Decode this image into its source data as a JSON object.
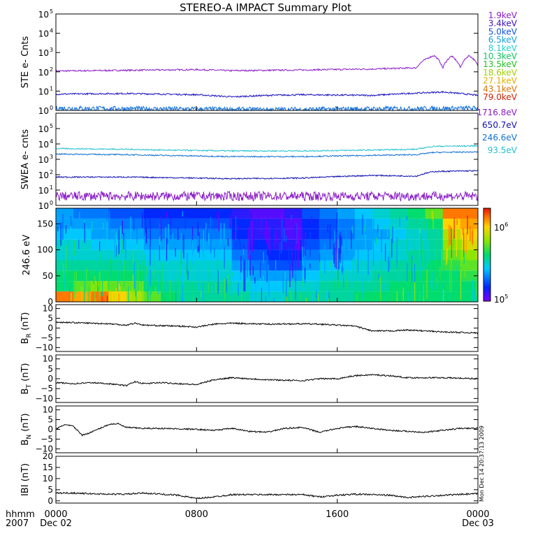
{
  "title": "STEREO-A IMPACT Summary Plot",
  "stamp": "Mon Dec 14 20:37:13 2009",
  "time_axis": {
    "corner_top": "hhmm",
    "corner_bottom": "2007",
    "ticks": [
      {
        "hours": 0,
        "label": "0000",
        "sub": "Dec 02"
      },
      {
        "hours": 8,
        "label": "0800",
        "sub": ""
      },
      {
        "hours": 16,
        "label": "1600",
        "sub": ""
      },
      {
        "hours": 24,
        "label": "0000",
        "sub": "Dec 03"
      }
    ]
  },
  "ste_legend": [
    {
      "label": "1.9keV",
      "color": "#8a1cc8"
    },
    {
      "label": "3.4keV",
      "color": "#3a10c0"
    },
    {
      "label": "5.0keV",
      "color": "#1050e0"
    },
    {
      "label": "6.5keV",
      "color": "#10a0e0"
    },
    {
      "label": "8.1keV",
      "color": "#20d0d0"
    },
    {
      "label": "10.3keV",
      "color": "#10c060"
    },
    {
      "label": "13.5keV",
      "color": "#20c020"
    },
    {
      "label": "18.6keV",
      "color": "#a0d000"
    },
    {
      "label": "27.1keV",
      "color": "#e0b000"
    },
    {
      "label": "43.1keV",
      "color": "#e07000"
    },
    {
      "label": "79.0keV",
      "color": "#d02000"
    }
  ],
  "swea_legend": [
    {
      "label": "1716.8eV",
      "color": "#8a1cc8"
    },
    {
      "label": "650.7eV",
      "color": "#1010b0"
    },
    {
      "label": "246.6eV",
      "color": "#1070d0"
    },
    {
      "label": "93.5eV",
      "color": "#20c0d0"
    }
  ],
  "colorbar": {
    "label_top": "10",
    "exp_top": "6",
    "label_bottom": "10",
    "exp_bottom": "5"
  },
  "chart_data": [
    {
      "type": "line",
      "name": "ste",
      "ylabel": "STE e- Cnts",
      "log": true,
      "ylim": [
        1,
        100000
      ],
      "yticks": [
        {
          "base": "10",
          "exp": "0"
        },
        {
          "base": "10",
          "exp": "1"
        },
        {
          "base": "10",
          "exp": "2"
        },
        {
          "base": "10",
          "exp": "3"
        },
        {
          "base": "10",
          "exp": "4"
        },
        {
          "base": "10",
          "exp": "5"
        }
      ],
      "series": [
        {
          "color": "#8a1cc8",
          "x": [
            0,
            4,
            8,
            10,
            12,
            14,
            18,
            20.5,
            21.5,
            22,
            22.5,
            23,
            23.5,
            24
          ],
          "y": [
            110,
            120,
            130,
            115,
            120,
            125,
            140,
            160,
            700,
            150,
            650,
            160,
            700,
            200
          ]
        },
        {
          "color": "#1a10c0",
          "x": [
            0,
            4,
            8,
            10,
            12,
            14,
            18,
            22,
            24
          ],
          "y": [
            7,
            7.5,
            6.5,
            5,
            6,
            6.5,
            6,
            9,
            6
          ]
        },
        {
          "color": "#1070e0",
          "x": [
            0,
            6,
            12,
            18,
            24
          ],
          "y": [
            1.3,
            1.2,
            1.1,
            1.2,
            1.3
          ]
        }
      ]
    },
    {
      "type": "line",
      "name": "swea",
      "ylabel": "SWEA e- cnts",
      "log": true,
      "ylim": [
        1,
        1000000
      ],
      "yticks": [
        {
          "base": "10",
          "exp": "0"
        },
        {
          "base": "10",
          "exp": "1"
        },
        {
          "base": "10",
          "exp": "2"
        },
        {
          "base": "10",
          "exp": "3"
        },
        {
          "base": "10",
          "exp": "4"
        },
        {
          "base": "10",
          "exp": "5"
        }
      ],
      "series": [
        {
          "color": "#20c0d0",
          "x": [
            0,
            4,
            6,
            10,
            14,
            18,
            20.5,
            21.5,
            24
          ],
          "y": [
            5000,
            4500,
            4000,
            3500,
            3500,
            4000,
            4500,
            7000,
            7500
          ]
        },
        {
          "color": "#1070d0",
          "x": [
            0,
            4,
            6,
            10,
            14,
            18,
            20.5,
            21.5,
            24
          ],
          "y": [
            2200,
            2000,
            1800,
            1500,
            1500,
            1800,
            2000,
            2800,
            3000
          ]
        },
        {
          "color": "#1010b0",
          "x": [
            0,
            4,
            8,
            10,
            14,
            18,
            20.5,
            21.5,
            24
          ],
          "y": [
            70,
            70,
            60,
            55,
            60,
            90,
            80,
            160,
            180
          ]
        },
        {
          "color": "#8a1cc8",
          "x": [
            0,
            12,
            24
          ],
          "y": [
            4,
            4,
            4
          ]
        }
      ]
    },
    {
      "type": "heatmap",
      "name": "pad",
      "ylabel": "246.6 eV",
      "ylim": [
        0,
        180
      ],
      "yticks": [
        "0",
        "50",
        "100",
        "150"
      ],
      "x": [
        0,
        1,
        2,
        3,
        4,
        5,
        6,
        7,
        8,
        9,
        10,
        11,
        12,
        13,
        14,
        15,
        16,
        17,
        18,
        19,
        20,
        21,
        22,
        23
      ],
      "y": [
        10,
        30,
        50,
        70,
        90,
        110,
        130,
        150,
        170
      ],
      "z_log": [
        [
          5.9,
          5.5,
          5.5,
          5.45,
          5.4,
          5.4,
          5.35,
          5.3,
          5.3
        ],
        [
          5.85,
          5.6,
          5.5,
          5.45,
          5.4,
          5.4,
          5.35,
          5.3,
          5.25
        ],
        [
          5.9,
          5.65,
          5.5,
          5.45,
          5.4,
          5.35,
          5.3,
          5.3,
          5.25
        ],
        [
          5.8,
          5.6,
          5.5,
          5.45,
          5.4,
          5.35,
          5.3,
          5.25,
          5.2
        ],
        [
          5.7,
          5.6,
          5.5,
          5.45,
          5.4,
          5.35,
          5.3,
          5.25,
          5.2
        ],
        [
          5.6,
          5.5,
          5.45,
          5.4,
          5.35,
          5.3,
          5.25,
          5.2,
          5.15
        ],
        [
          5.5,
          5.45,
          5.4,
          5.4,
          5.35,
          5.3,
          5.25,
          5.2,
          5.15
        ],
        [
          5.45,
          5.45,
          5.4,
          5.4,
          5.35,
          5.3,
          5.25,
          5.2,
          5.15
        ],
        [
          5.45,
          5.45,
          5.4,
          5.4,
          5.35,
          5.3,
          5.25,
          5.2,
          5.15
        ],
        [
          5.45,
          5.45,
          5.4,
          5.4,
          5.35,
          5.3,
          5.25,
          5.2,
          5.15
        ],
        [
          5.45,
          5.4,
          5.35,
          5.3,
          5.25,
          5.2,
          5.15,
          5.15,
          5.1
        ],
        [
          5.4,
          5.35,
          5.3,
          5.25,
          5.2,
          5.15,
          5.1,
          5.1,
          5.05
        ],
        [
          5.4,
          5.35,
          5.3,
          5.2,
          5.15,
          5.1,
          5.1,
          5.1,
          5.05
        ],
        [
          5.45,
          5.4,
          5.3,
          5.2,
          5.15,
          5.1,
          5.05,
          5.05,
          5.1
        ],
        [
          5.45,
          5.4,
          5.35,
          5.3,
          5.25,
          5.2,
          5.15,
          5.15,
          5.2
        ],
        [
          5.45,
          5.45,
          5.4,
          5.35,
          5.3,
          5.25,
          5.2,
          5.2,
          5.25
        ],
        [
          5.45,
          5.45,
          5.4,
          5.35,
          5.3,
          5.3,
          5.25,
          5.25,
          5.3
        ],
        [
          5.5,
          5.45,
          5.4,
          5.4,
          5.35,
          5.3,
          5.3,
          5.3,
          5.35
        ],
        [
          5.5,
          5.45,
          5.45,
          5.4,
          5.35,
          5.35,
          5.3,
          5.35,
          5.4
        ],
        [
          5.5,
          5.5,
          5.45,
          5.45,
          5.4,
          5.4,
          5.35,
          5.4,
          5.45
        ],
        [
          5.5,
          5.5,
          5.5,
          5.45,
          5.45,
          5.4,
          5.4,
          5.45,
          5.5
        ],
        [
          5.5,
          5.5,
          5.5,
          5.5,
          5.45,
          5.45,
          5.45,
          5.5,
          5.6
        ],
        [
          5.5,
          5.5,
          5.5,
          5.55,
          5.6,
          5.65,
          5.7,
          5.8,
          5.9
        ],
        [
          5.5,
          5.5,
          5.55,
          5.6,
          5.65,
          5.75,
          5.8,
          5.85,
          5.9
        ]
      ]
    },
    {
      "type": "line",
      "name": "br",
      "ylabel": "B",
      "ysub": "R",
      "yunit": " (nT)",
      "ylim": [
        -12,
        12
      ],
      "yticks": [
        "−10",
        "−5",
        "0",
        "5",
        "10"
      ],
      "series": [
        {
          "color": "#000000",
          "x": [
            0,
            1,
            2,
            3,
            4,
            4.5,
            5,
            6,
            7,
            8,
            9,
            10,
            12,
            14,
            15,
            16,
            17,
            18,
            19,
            20,
            22,
            24
          ],
          "y": [
            3,
            2.8,
            2.5,
            2.2,
            1.5,
            2.5,
            1.5,
            1.2,
            1.0,
            0.5,
            2.0,
            2.5,
            2.0,
            2.2,
            2.0,
            1.5,
            1.0,
            -1.5,
            -1.5,
            -1.0,
            -2.0,
            -2.5
          ]
        }
      ]
    },
    {
      "type": "line",
      "name": "bt",
      "ylabel": "B",
      "ysub": "T",
      "yunit": " (nT)",
      "ylim": [
        -12,
        12
      ],
      "yticks": [
        "−10",
        "−5",
        "0",
        "5",
        "10"
      ],
      "series": [
        {
          "color": "#000000",
          "x": [
            0,
            1,
            2,
            3,
            4,
            4.5,
            5,
            6,
            7,
            8,
            9,
            10,
            12,
            14,
            15,
            16,
            17,
            18,
            19,
            20,
            22,
            24
          ],
          "y": [
            -2,
            -2.5,
            -2,
            -2.5,
            -3.5,
            -1.5,
            -2.5,
            -2,
            -2.5,
            -3.0,
            -0.5,
            0.5,
            -0.5,
            -1.0,
            0,
            0,
            1.5,
            2.0,
            1.5,
            0.5,
            0.5,
            0
          ]
        }
      ]
    },
    {
      "type": "line",
      "name": "bn",
      "ylabel": "B",
      "ysub": "N",
      "yunit": " (nT)",
      "ylim": [
        -12,
        12
      ],
      "yticks": [
        "−10",
        "−5",
        "0",
        "5",
        "10"
      ],
      "series": [
        {
          "color": "#000000",
          "x": [
            0,
            0.5,
            1,
            1.5,
            2,
            3,
            3.5,
            4,
            5,
            6,
            8,
            9,
            10,
            11,
            12,
            13,
            14,
            15,
            16,
            17,
            18,
            19,
            20,
            21,
            22,
            23,
            24
          ],
          "y": [
            0,
            2.5,
            1.5,
            -3.0,
            -1.5,
            2.5,
            3.0,
            1.0,
            0.5,
            0.5,
            0,
            -0.5,
            0.5,
            -1.0,
            -1.5,
            0.5,
            1.0,
            -1.5,
            0.5,
            1.5,
            0.5,
            -0.5,
            -1.0,
            -1.5,
            -0.5,
            0.5,
            0.5
          ]
        }
      ]
    },
    {
      "type": "line",
      "name": "bmag",
      "ylabel": "IBI",
      "ysub": "",
      "yunit": " (nT)",
      "ylim": [
        -1,
        20
      ],
      "yticks": [
        "0",
        "5",
        "10",
        "15",
        "20"
      ],
      "series": [
        {
          "color": "#000000",
          "x": [
            0,
            1,
            2,
            3,
            4,
            5,
            6,
            7,
            8,
            9,
            10,
            12,
            14,
            15,
            16,
            17,
            18,
            19,
            20,
            22,
            24
          ],
          "y": [
            3.5,
            3.5,
            3.2,
            3.0,
            3.0,
            3.5,
            3.0,
            2.5,
            1.0,
            1.8,
            2.8,
            2.8,
            2.8,
            1.8,
            2.5,
            3.0,
            2.8,
            2.5,
            1.5,
            2.5,
            3.2
          ]
        }
      ]
    }
  ]
}
